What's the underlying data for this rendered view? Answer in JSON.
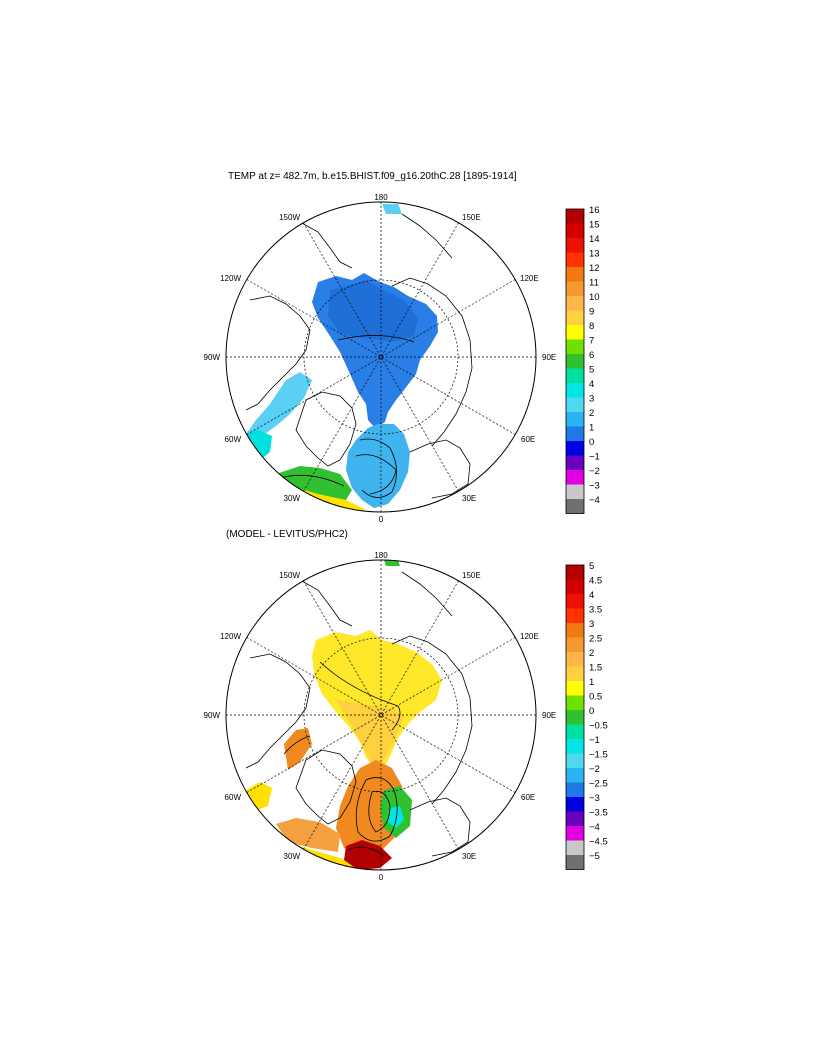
{
  "panels": [
    {
      "title": "TEMP at z= 482.7m, b.e15.BHIST.f09_g16.20thC.28 [1895-1914]",
      "lon_labels": [
        "180",
        "150E",
        "120E",
        "90E",
        "60E",
        "30E",
        "0",
        "30W",
        "60W",
        "90W",
        "120W",
        "150W"
      ],
      "colorbar": {
        "labels": [
          "16",
          "15",
          "14",
          "13",
          "12",
          "11",
          "10",
          "9",
          "8",
          "7",
          "6",
          "5",
          "4",
          "3",
          "2",
          "1",
          "0",
          "−1",
          "−2",
          "−3",
          "−4"
        ],
        "colors": [
          "#b30000",
          "#d40000",
          "#ee1100",
          "#ff3300",
          "#f07a10",
          "#f59a30",
          "#ffb54a",
          "#ffd040",
          "#ffff00",
          "#70e000",
          "#30c030",
          "#00e0a0",
          "#00e5e5",
          "#50d8f0",
          "#2ab4f0",
          "#1e78e8",
          "#0000e0",
          "#6a00c0",
          "#e000e0",
          "#c8c8c8",
          "#707070"
        ]
      }
    },
    {
      "title": "(MODEL - LEVITUS/PHC2)",
      "lon_labels": [
        "180",
        "150E",
        "120E",
        "90E",
        "60E",
        "30E",
        "0",
        "30W",
        "60W",
        "90W",
        "120W",
        "150W"
      ],
      "colorbar": {
        "labels": [
          "5",
          "4.5",
          "4",
          "3.5",
          "3",
          "2.5",
          "2",
          "1.5",
          "1",
          "0.5",
          "0",
          "−0.5",
          "−1",
          "−1.5",
          "−2",
          "−2.5",
          "−3",
          "−3.5",
          "−4",
          "−4.5",
          "−5"
        ],
        "colors": [
          "#b30000",
          "#d40000",
          "#ee1100",
          "#ff3300",
          "#f07a10",
          "#f59a30",
          "#ffb54a",
          "#ffd040",
          "#ffff00",
          "#70e000",
          "#30c030",
          "#00e0a0",
          "#00e5e5",
          "#50d8f0",
          "#2ab4f0",
          "#1e78e8",
          "#0000e0",
          "#6a00c0",
          "#e000e0",
          "#c8c8c8",
          "#707070"
        ]
      }
    }
  ]
}
